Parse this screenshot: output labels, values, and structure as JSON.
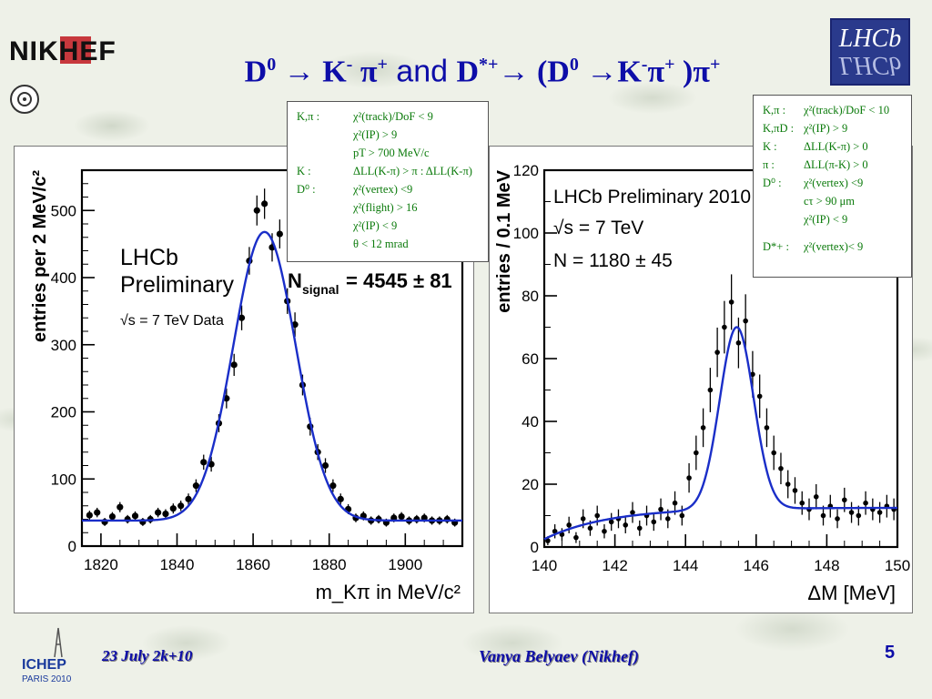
{
  "header": {
    "title_parts": {
      "d0": "D",
      "sup0": "0",
      "arrow1": " → K",
      "supminus": "-",
      "pi1": " π",
      "supplus1": "+",
      "and": " and ",
      "dstar": "D",
      "supstar": "*+",
      "arrow2": "→ (D",
      "sup0b": "0",
      "arrow3": " →K",
      "supminus2": "-",
      "pi2": "π",
      "supplus2": "+",
      "close": " )π",
      "supplus3": "+"
    },
    "nikhef_logo_text": "NIKHEF",
    "lhcb_logo_text": "LHCb"
  },
  "cuts_left": [
    {
      "label": "K,π :",
      "cut": "χ²(track)/DoF < 9"
    },
    {
      "label": "",
      "cut": "χ²(IP) > 9"
    },
    {
      "label": "",
      "cut": "pT  > 700 MeV/c"
    },
    {
      "label": "K   :",
      "cut": "ΔLL(K-π)  >  π  :  ΔLL(K-π)"
    },
    {
      "label": "D⁰  :",
      "cut": "χ²(vertex) <9"
    },
    {
      "label": "",
      "cut": "χ²(flight) > 16"
    },
    {
      "label": "",
      "cut": "χ²(IP) < 9"
    },
    {
      "label": "",
      "cut": "θ < 12 mrad"
    }
  ],
  "cuts_right": [
    {
      "label": "K,π :",
      "cut": "χ²(track)/DoF < 10"
    },
    {
      "label": "K,πD :",
      "cut": "χ²(IP) > 9"
    },
    {
      "label": "K   :",
      "cut": "ΔLL(K-π) > 0"
    },
    {
      "label": "π   :",
      "cut": "ΔLL(π-K) > 0"
    },
    {
      "label": "D⁰  :",
      "cut": "χ²(vertex) <9"
    },
    {
      "label": "",
      "cut": "cτ > 90 μm"
    },
    {
      "label": "",
      "cut": "χ²(IP) < 9"
    },
    {
      "label": "D*+  :",
      "cut": "χ²(vertex)< 9"
    }
  ],
  "chart_data": [
    {
      "type": "scatter",
      "xlabel": "m_Kπ in MeV/c²",
      "ylabel": "entries per 2 MeV/c²",
      "xlim": [
        1815,
        1915
      ],
      "ylim": [
        0,
        560
      ],
      "xticks": [
        "1820",
        "1840",
        "1860",
        "1880",
        "1900"
      ],
      "yticks": [
        "0",
        "100",
        "200",
        "300",
        "400",
        "500"
      ],
      "annotation_lines": [
        "LHCb",
        "Preliminary",
        "√s = 7 TeV Data"
      ],
      "n_signal_label": "N",
      "n_signal_sub": "signal",
      "n_signal_value": "= 4545 ± 81",
      "grid": false,
      "series": [
        {
          "kind": "data_points_with_errors",
          "x": [
            1817,
            1819,
            1821,
            1823,
            1825,
            1827,
            1829,
            1831,
            1833,
            1835,
            1837,
            1839,
            1841,
            1843,
            1845,
            1847,
            1849,
            1851,
            1853,
            1855,
            1857,
            1859,
            1861,
            1863,
            1865,
            1867,
            1869,
            1871,
            1873,
            1875,
            1877,
            1879,
            1881,
            1883,
            1885,
            1887,
            1889,
            1891,
            1893,
            1895,
            1897,
            1899,
            1901,
            1903,
            1905,
            1907,
            1909,
            1911,
            1913
          ],
          "y": [
            46,
            50,
            36,
            44,
            58,
            40,
            45,
            36,
            40,
            50,
            48,
            56,
            60,
            70,
            90,
            125,
            122,
            183,
            220,
            270,
            340,
            425,
            500,
            510,
            445,
            465,
            365,
            330,
            240,
            178,
            140,
            120,
            90,
            70,
            55,
            42,
            45,
            38,
            40,
            35,
            42,
            44,
            38,
            40,
            42,
            38,
            38,
            40,
            35
          ]
        },
        {
          "kind": "fit_curve",
          "model": "gaussian_plus_flat",
          "mean": 1863,
          "sigma": 8.2,
          "amplitude": 430,
          "background": 38
        }
      ]
    },
    {
      "type": "scatter",
      "xlabel": "ΔM [MeV]",
      "ylabel": "entries / 0.1 MeV",
      "xlim": [
        140,
        150
      ],
      "ylim": [
        0,
        120
      ],
      "xticks": [
        "140",
        "142",
        "144",
        "146",
        "148",
        "150"
      ],
      "yticks": [
        "0",
        "20",
        "40",
        "60",
        "80",
        "100",
        "120"
      ],
      "annotation_lines": [
        "LHCb Preliminary 2010",
        "√s = 7 TeV",
        "N = 1180 ± 45"
      ],
      "grid": false,
      "series": [
        {
          "kind": "data_points_with_errors",
          "x": [
            140.1,
            140.3,
            140.5,
            140.7,
            140.9,
            141.1,
            141.3,
            141.5,
            141.7,
            141.9,
            142.1,
            142.3,
            142.5,
            142.7,
            142.9,
            143.1,
            143.3,
            143.5,
            143.7,
            143.9,
            144.1,
            144.3,
            144.5,
            144.7,
            144.9,
            145.1,
            145.3,
            145.5,
            145.7,
            145.9,
            146.1,
            146.3,
            146.5,
            146.7,
            146.9,
            147.1,
            147.3,
            147.5,
            147.7,
            147.9,
            148.1,
            148.3,
            148.5,
            148.7,
            148.9,
            149.1,
            149.3,
            149.5,
            149.7,
            149.9
          ],
          "y": [
            2,
            5,
            4,
            7,
            3,
            9,
            6,
            10,
            5,
            8,
            9,
            7,
            11,
            6,
            10,
            8,
            12,
            9,
            14,
            10,
            22,
            30,
            38,
            50,
            62,
            70,
            78,
            65,
            72,
            55,
            48,
            38,
            30,
            25,
            20,
            18,
            14,
            12,
            16,
            10,
            13,
            9,
            15,
            11,
            10,
            14,
            12,
            11,
            13,
            12
          ]
        },
        {
          "kind": "fit_curve",
          "model": "gaussian_plus_threshold",
          "mean": 145.45,
          "sigma": 0.48,
          "amplitude": 58,
          "background_plateau": 12.5,
          "threshold": 139.6
        }
      ]
    }
  ],
  "footer": {
    "date": "23 July 2k+10",
    "author": "Vanya Belyaev (Nikhef)",
    "page_number": "5",
    "ichep_text": "ICHEP",
    "ichep_sub": "PARIS 2010"
  },
  "colors": {
    "title": "#0d0da8",
    "cuts_text": "#0a7a0a",
    "fit_curve": "#1a2ec8",
    "data_points": "#000000"
  }
}
